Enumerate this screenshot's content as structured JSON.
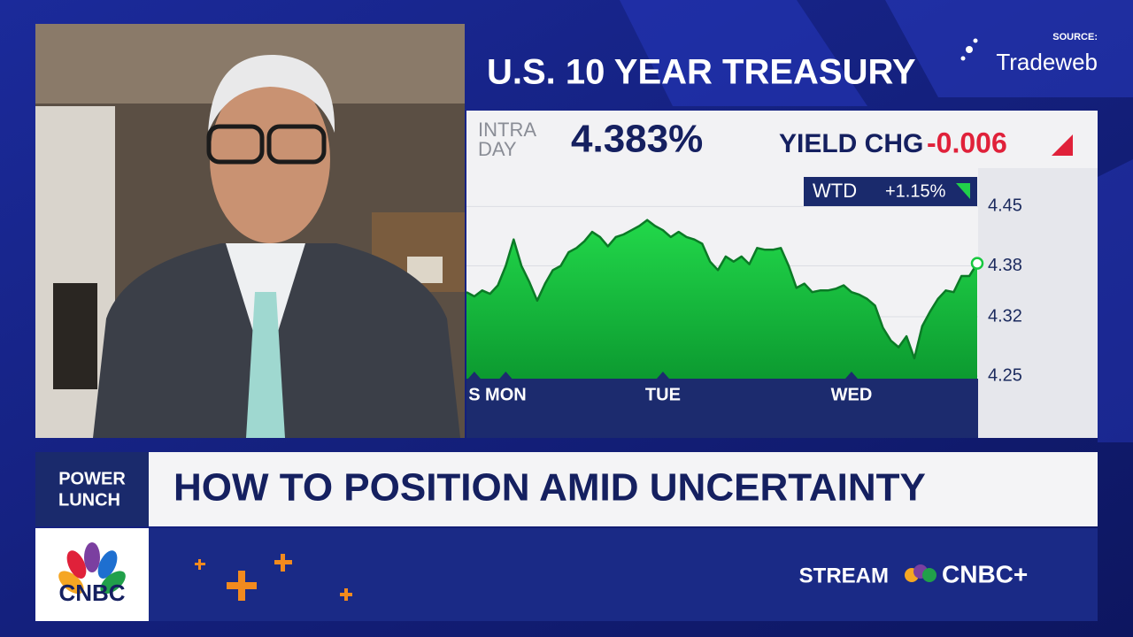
{
  "source": {
    "label": "SOURCE:",
    "name": "Tradeweb"
  },
  "chart_data": {
    "type": "area",
    "title": "U.S. 10 YEAR TREASURY",
    "intraday_label": [
      "INTRA",
      "DAY"
    ],
    "yield": "4.383%",
    "yield_chg_label": "YIELD CHG",
    "yield_chg": "-0.006",
    "wtd_label": "WTD",
    "wtd": "+1.15%",
    "values": [
      4.349,
      4.344,
      4.351,
      4.347,
      4.357,
      4.38,
      4.411,
      4.38,
      4.361,
      4.339,
      4.359,
      4.375,
      4.38,
      4.396,
      4.401,
      4.409,
      4.42,
      4.414,
      4.403,
      4.414,
      4.417,
      4.422,
      4.427,
      4.434,
      4.427,
      4.422,
      4.414,
      4.42,
      4.414,
      4.411,
      4.406,
      4.385,
      4.375,
      4.391,
      4.385,
      4.391,
      4.382,
      4.401,
      4.399,
      4.399,
      4.401,
      4.38,
      4.354,
      4.359,
      4.349,
      4.351,
      4.351,
      4.353,
      4.357,
      4.349,
      4.346,
      4.341,
      4.333,
      4.307,
      4.292,
      4.284,
      4.297,
      4.271,
      4.309,
      4.326,
      4.341,
      4.351,
      4.349,
      4.368,
      4.368,
      4.383
    ],
    "color": "#17c83f",
    "ylim": [
      4.247,
      4.49
    ],
    "yticks": [
      4.45,
      4.38,
      4.32,
      4.25
    ],
    "xticks": [
      {
        "value": 1,
        "label": "S"
      },
      {
        "value": 5,
        "label": "MON"
      },
      {
        "value": 25,
        "label": "TUE"
      },
      {
        "value": 49,
        "label": "WED"
      }
    ],
    "grid": true
  },
  "banner": {
    "show": [
      "POWER",
      "LUNCH"
    ],
    "headline": "HOW TO POSITION AMID UNCERTAINTY"
  },
  "footer": {
    "logo": "CNBC",
    "stream": "STREAM",
    "brand": "CNBC+"
  }
}
